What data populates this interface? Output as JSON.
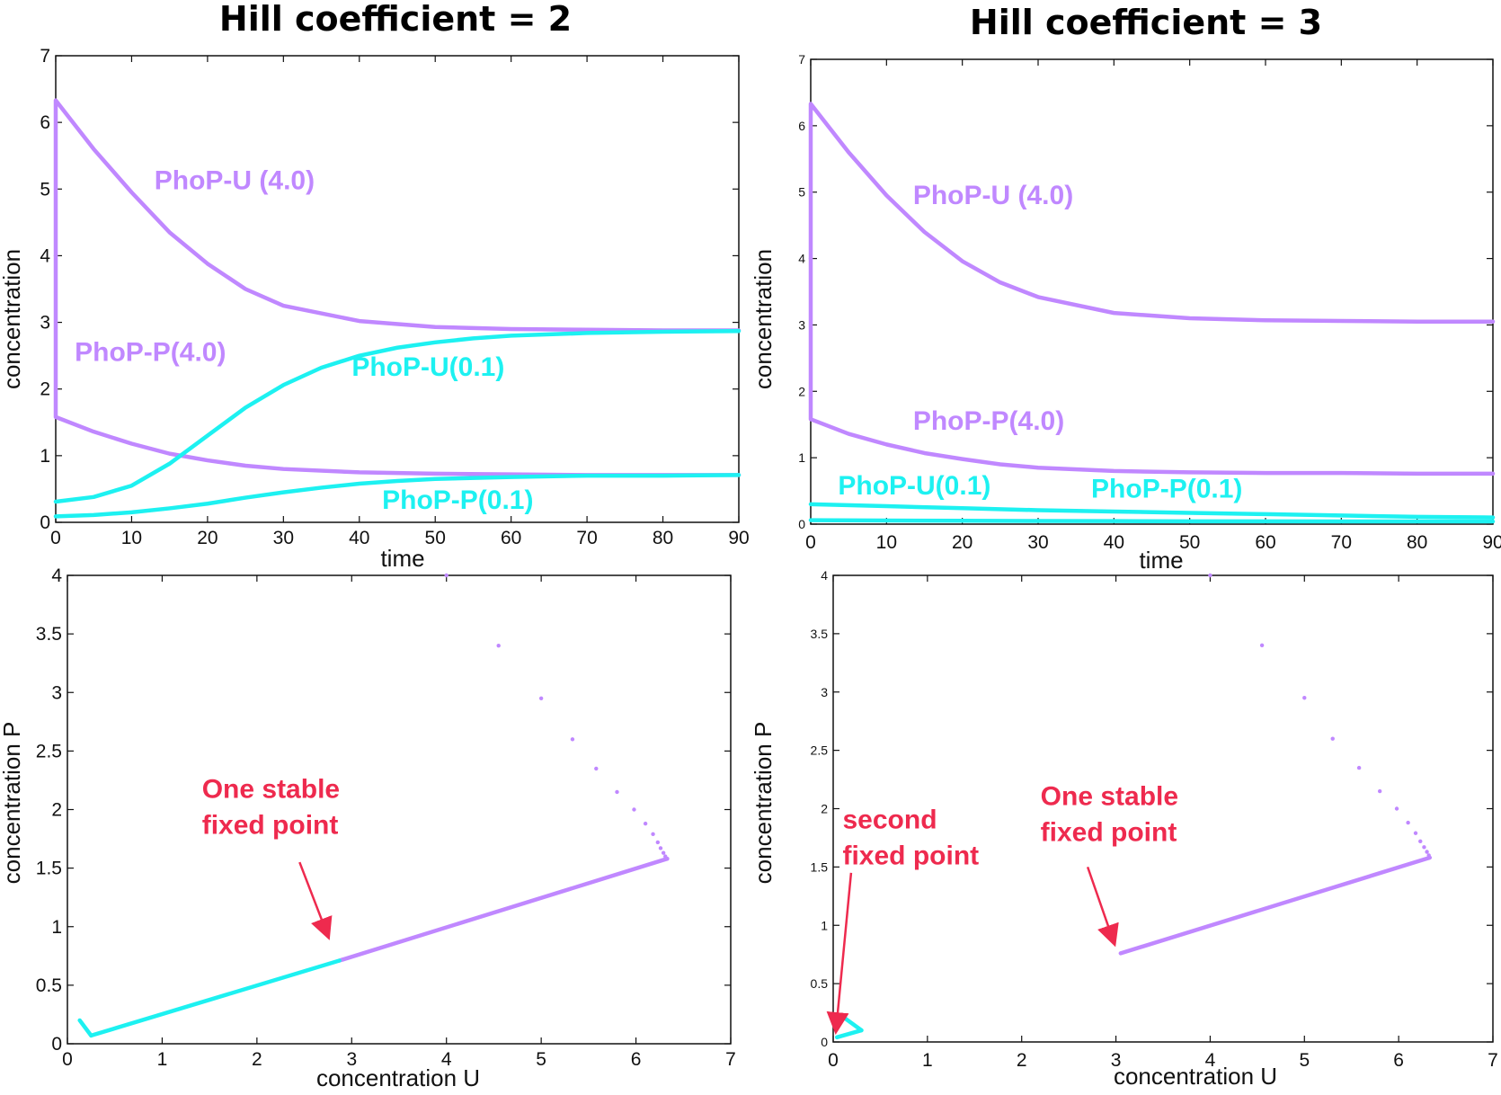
{
  "colors": {
    "purple": "#c088ff",
    "cyan": "#1df1f1",
    "annotation": "#ee2a4e",
    "frame": "#111111"
  },
  "titles": {
    "left": "Hill coefficient = 2",
    "right": "Hill coefficient = 3"
  },
  "chart_data": [
    {
      "id": "time-h2",
      "type": "scatter",
      "xlabel": "time",
      "ylabel": "concentration",
      "xlim": [
        0,
        90
      ],
      "ylim": [
        0,
        7
      ],
      "xticks": [
        0,
        10,
        20,
        30,
        40,
        50,
        60,
        70,
        80,
        90
      ],
      "yticks": [
        0,
        1,
        2,
        3,
        4,
        5,
        6,
        7
      ],
      "series": [
        {
          "name": "PhoP-U (4.0)",
          "color": "purple",
          "x": [
            0,
            5,
            10,
            15,
            20,
            25,
            30,
            40,
            50,
            60,
            70,
            80,
            90
          ],
          "y": [
            6.33,
            5.6,
            4.95,
            4.35,
            3.88,
            3.5,
            3.25,
            3.02,
            2.93,
            2.9,
            2.89,
            2.88,
            2.88
          ],
          "vertical_start": [
            4.0,
            6.33
          ]
        },
        {
          "name": "PhoP-P(4.0)",
          "color": "purple",
          "x": [
            0,
            5,
            10,
            15,
            20,
            25,
            30,
            40,
            50,
            60,
            70,
            80,
            90
          ],
          "y": [
            1.58,
            1.36,
            1.18,
            1.03,
            0.93,
            0.85,
            0.8,
            0.75,
            0.73,
            0.72,
            0.71,
            0.71,
            0.71
          ],
          "vertical_start": [
            4.0,
            1.58
          ]
        },
        {
          "name": "PhoP-U(0.1)",
          "color": "cyan",
          "x": [
            0,
            5,
            10,
            15,
            20,
            25,
            30,
            35,
            40,
            45,
            50,
            55,
            60,
            70,
            80,
            90
          ],
          "y": [
            0.31,
            0.38,
            0.55,
            0.88,
            1.3,
            1.72,
            2.06,
            2.32,
            2.5,
            2.62,
            2.7,
            2.76,
            2.8,
            2.84,
            2.86,
            2.87
          ]
        },
        {
          "name": "PhoP-P(0.1)",
          "color": "cyan",
          "x": [
            0,
            5,
            10,
            15,
            20,
            25,
            30,
            35,
            40,
            45,
            50,
            60,
            70,
            80,
            90
          ],
          "y": [
            0.09,
            0.11,
            0.15,
            0.21,
            0.28,
            0.37,
            0.45,
            0.52,
            0.58,
            0.62,
            0.65,
            0.68,
            0.7,
            0.7,
            0.71
          ]
        }
      ],
      "annotations": [
        {
          "text": "PhoP-U (4.0)",
          "color": "purple",
          "x": 13,
          "y": 5.0
        },
        {
          "text": "PhoP-P(4.0)",
          "color": "purple",
          "x": 2.5,
          "y": 2.42
        },
        {
          "text": "PhoP-U(0.1)",
          "color": "cyan",
          "x": 39,
          "y": 2.2
        },
        {
          "text": "PhoP-P(0.1)",
          "color": "cyan",
          "x": 43,
          "y": 0.2
        }
      ]
    },
    {
      "id": "time-h3",
      "type": "scatter",
      "xlabel": "time",
      "ylabel": "concentration",
      "xlim": [
        0,
        90
      ],
      "ylim": [
        0,
        7
      ],
      "xticks": [
        0,
        10,
        20,
        30,
        40,
        50,
        60,
        70,
        80,
        90
      ],
      "yticks": [
        0,
        1,
        2,
        3,
        4,
        5,
        6,
        7
      ],
      "series": [
        {
          "name": "PhoP-U (4.0)",
          "color": "purple",
          "x": [
            0,
            5,
            10,
            15,
            20,
            25,
            30,
            40,
            50,
            60,
            70,
            80,
            90
          ],
          "y": [
            6.33,
            5.6,
            4.95,
            4.4,
            3.96,
            3.64,
            3.42,
            3.18,
            3.1,
            3.07,
            3.06,
            3.05,
            3.05
          ],
          "vertical_start": [
            4.0,
            6.33
          ]
        },
        {
          "name": "PhoP-P(4.0)",
          "color": "purple",
          "x": [
            0,
            5,
            10,
            15,
            20,
            25,
            30,
            40,
            50,
            60,
            70,
            80,
            90
          ],
          "y": [
            1.58,
            1.36,
            1.2,
            1.07,
            0.98,
            0.9,
            0.85,
            0.8,
            0.78,
            0.77,
            0.77,
            0.76,
            0.76
          ],
          "vertical_start": [
            4.0,
            1.58
          ]
        },
        {
          "name": "PhoP-U(0.1)",
          "color": "cyan",
          "x": [
            0,
            10,
            20,
            30,
            40,
            50,
            60,
            70,
            80,
            90
          ],
          "y": [
            0.3,
            0.27,
            0.24,
            0.21,
            0.19,
            0.17,
            0.15,
            0.13,
            0.11,
            0.1
          ]
        },
        {
          "name": "PhoP-P(0.1)",
          "color": "cyan",
          "x": [
            0,
            10,
            20,
            30,
            40,
            50,
            60,
            70,
            80,
            90
          ],
          "y": [
            0.06,
            0.055,
            0.05,
            0.047,
            0.045,
            0.043,
            0.042,
            0.041,
            0.04,
            0.04
          ]
        }
      ],
      "annotations": [
        {
          "text": "PhoP-U (4.0)",
          "color": "purple",
          "x": 13.5,
          "y": 4.82
        },
        {
          "text": "PhoP-P(4.0)",
          "color": "purple",
          "x": 13.5,
          "y": 1.42
        },
        {
          "text": "PhoP-U(0.1)",
          "color": "cyan",
          "x": 3.6,
          "y": 0.45
        },
        {
          "text": "PhoP-P(0.1)",
          "color": "cyan",
          "x": 37,
          "y": 0.4
        }
      ]
    },
    {
      "id": "phase-h2",
      "type": "scatter",
      "xlabel": "concentration U",
      "ylabel": "concentration P",
      "xlim": [
        0,
        7
      ],
      "ylim": [
        0,
        4
      ],
      "xticks": [
        0,
        1,
        2,
        3,
        4,
        5,
        6,
        7
      ],
      "yticks": [
        0,
        0.5,
        1,
        1.5,
        2,
        2.5,
        3,
        3.5,
        4
      ],
      "series": [
        {
          "color": "purple",
          "mode": "line",
          "x": [
            6.33,
            2.87
          ],
          "y": [
            1.58,
            0.71
          ]
        },
        {
          "color": "purple",
          "mode": "points",
          "x": [
            4.0,
            4.55,
            5.0,
            5.33,
            5.58,
            5.8,
            5.98,
            6.1,
            6.18,
            6.23,
            6.26,
            6.29,
            6.31,
            6.33
          ],
          "y": [
            4.0,
            3.4,
            2.95,
            2.6,
            2.35,
            2.15,
            2.0,
            1.88,
            1.79,
            1.72,
            1.67,
            1.63,
            1.6,
            1.58
          ]
        },
        {
          "color": "cyan",
          "mode": "line",
          "x": [
            0.25,
            2.87
          ],
          "y": [
            0.07,
            0.71
          ]
        },
        {
          "color": "cyan",
          "mode": "line",
          "x": [
            0.13,
            0.25
          ],
          "y": [
            0.2,
            0.07
          ]
        }
      ],
      "annotations": [
        {
          "text": [
            "One stable",
            "fixed point"
          ],
          "color": "annotation",
          "x": 1.42,
          "y": 2.1,
          "arrow": {
            "from": [
              2.45,
              1.55
            ],
            "to": [
              2.75,
              0.92
            ]
          }
        }
      ]
    },
    {
      "id": "phase-h3",
      "type": "scatter",
      "xlabel": "concentration U",
      "ylabel": "concentration P",
      "xlim": [
        0,
        7
      ],
      "ylim": [
        0,
        4
      ],
      "xticks": [
        0,
        1,
        2,
        3,
        4,
        5,
        6,
        7
      ],
      "yticks": [
        0,
        0.5,
        1,
        1.5,
        2,
        2.5,
        3,
        3.5,
        4
      ],
      "series": [
        {
          "color": "purple",
          "mode": "line",
          "x": [
            6.33,
            3.05
          ],
          "y": [
            1.58,
            0.76
          ]
        },
        {
          "color": "purple",
          "mode": "points",
          "x": [
            4.0,
            4.55,
            5.0,
            5.3,
            5.58,
            5.8,
            5.98,
            6.1,
            6.18,
            6.23,
            6.27,
            6.3,
            6.32,
            6.33
          ],
          "y": [
            4.0,
            3.4,
            2.95,
            2.6,
            2.35,
            2.15,
            2.0,
            1.88,
            1.79,
            1.72,
            1.67,
            1.63,
            1.6,
            1.58
          ]
        },
        {
          "color": "cyan",
          "mode": "line",
          "x": [
            0.04,
            0.3
          ],
          "y": [
            0.04,
            0.1
          ]
        },
        {
          "color": "cyan",
          "mode": "line",
          "x": [
            0.13,
            0.3
          ],
          "y": [
            0.2,
            0.1
          ]
        }
      ],
      "annotations": [
        {
          "text": [
            "second",
            "fixed point"
          ],
          "color": "annotation",
          "x": 0.1,
          "y": 1.83,
          "arrow": {
            "from": [
              0.19,
              1.45
            ],
            "to": [
              0.03,
              0.1
            ]
          }
        },
        {
          "text": [
            "One stable",
            "fixed point"
          ],
          "color": "annotation",
          "x": 2.2,
          "y": 2.03,
          "arrow": {
            "from": [
              2.7,
              1.5
            ],
            "to": [
              2.98,
              0.85
            ]
          }
        }
      ]
    }
  ]
}
